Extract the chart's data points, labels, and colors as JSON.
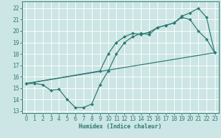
{
  "bg_color": "#cce5e5",
  "grid_color": "#ffffff",
  "line_color": "#2d7a70",
  "xlabel": "Humidex (Indice chaleur)",
  "ylim": [
    12.8,
    22.6
  ],
  "xlim": [
    -0.5,
    23.5
  ],
  "yticks": [
    13,
    14,
    15,
    16,
    17,
    18,
    19,
    20,
    21,
    22
  ],
  "xticks": [
    0,
    1,
    2,
    3,
    4,
    5,
    6,
    7,
    8,
    9,
    10,
    11,
    12,
    13,
    14,
    15,
    16,
    17,
    18,
    19,
    20,
    21,
    22,
    23
  ],
  "line1_x": [
    0,
    1,
    2,
    3,
    4,
    5,
    6,
    7,
    8,
    9,
    10,
    11,
    12,
    13,
    14,
    15,
    16,
    17,
    18,
    19,
    20,
    21,
    22,
    23
  ],
  "line1_y": [
    15.4,
    15.4,
    15.3,
    14.8,
    14.9,
    14.0,
    13.3,
    13.3,
    13.6,
    15.3,
    16.5,
    18.0,
    19.0,
    19.5,
    19.8,
    19.7,
    20.3,
    20.5,
    20.7,
    21.3,
    21.6,
    22.0,
    21.2,
    18.1
  ],
  "line2_x": [
    0,
    23
  ],
  "line2_y": [
    15.4,
    18.1
  ],
  "line3_x": [
    0,
    9,
    10,
    11,
    12,
    13,
    14,
    15,
    16,
    17,
    18,
    19,
    20,
    21,
    22,
    23
  ],
  "line3_y": [
    15.4,
    16.5,
    18.0,
    19.0,
    19.5,
    19.8,
    19.7,
    19.9,
    20.3,
    20.5,
    20.7,
    21.2,
    21.0,
    20.0,
    19.3,
    18.1
  ],
  "xlabel_fontsize": 6,
  "tick_fontsize": 5.5
}
